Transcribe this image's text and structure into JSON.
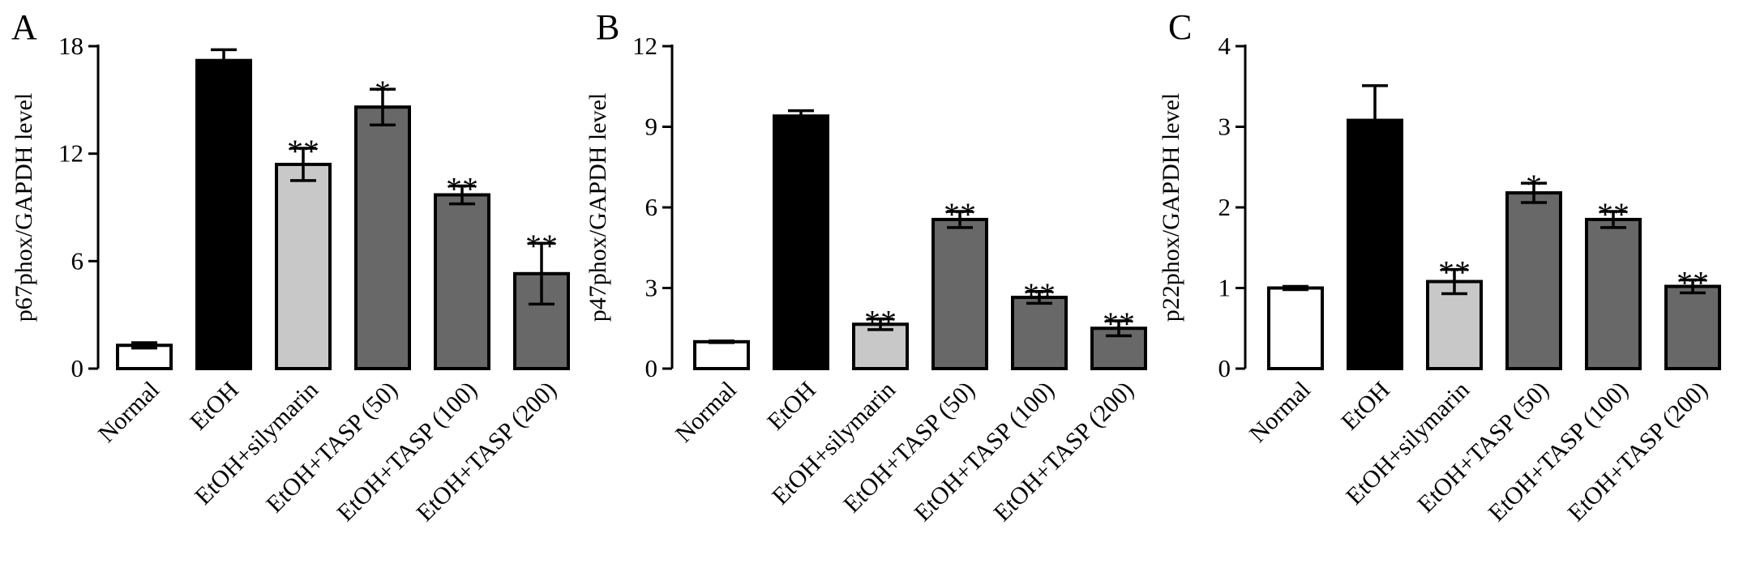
{
  "chart_data": [
    {
      "panel": "A",
      "type": "bar",
      "ylabel": "p67phox/GAPDH level",
      "ylim": [
        0,
        18
      ],
      "yticks": [
        "0",
        "6",
        "12",
        "18"
      ],
      "categories": [
        "Normal",
        "EtOH",
        "EtOH+silymarin",
        "EtOH+TASP (50)",
        "EtOH+TASP (100)",
        "EtOH+TASP (200)"
      ],
      "values": [
        1.3,
        17.2,
        11.4,
        14.6,
        9.7,
        5.3
      ],
      "errors": [
        0.15,
        0.6,
        0.9,
        1.0,
        0.5,
        1.7
      ],
      "significance": [
        "",
        "",
        "**",
        "*",
        "**",
        "**"
      ],
      "bar_colors": [
        "#ffffff",
        "#000000",
        "#c8c8c8",
        "#686868",
        "#686868",
        "#686868"
      ]
    },
    {
      "panel": "B",
      "type": "bar",
      "ylabel": "p47phox/GAPDH level",
      "ylim": [
        0,
        12
      ],
      "yticks": [
        "0",
        "3",
        "6",
        "9",
        "12"
      ],
      "categories": [
        "Normal",
        "EtOH",
        "EtOH+silymarin",
        "EtOH+TASP (50)",
        "EtOH+TASP (100)",
        "EtOH+TASP (200)"
      ],
      "values": [
        1.0,
        9.4,
        1.65,
        5.55,
        2.65,
        1.5
      ],
      "errors": [
        0.03,
        0.2,
        0.2,
        0.3,
        0.22,
        0.28
      ],
      "significance": [
        "",
        "",
        "**",
        "**",
        "**",
        "**"
      ],
      "bar_colors": [
        "#ffffff",
        "#000000",
        "#c8c8c8",
        "#686868",
        "#686868",
        "#686868"
      ]
    },
    {
      "panel": "C",
      "type": "bar",
      "ylabel": "p22phox/GAPDH level",
      "ylim": [
        0,
        4
      ],
      "yticks": [
        "0",
        "1",
        "2",
        "3",
        "4"
      ],
      "categories": [
        "Normal",
        "EtOH",
        "EtOH+silymarin",
        "EtOH+TASP (50)",
        "EtOH+TASP (100)",
        "EtOH+TASP (200)"
      ],
      "values": [
        1.0,
        3.08,
        1.08,
        2.18,
        1.85,
        1.02
      ],
      "errors": [
        0.02,
        0.43,
        0.15,
        0.12,
        0.1,
        0.08
      ],
      "significance": [
        "",
        "",
        "**",
        "*",
        "**",
        "**"
      ],
      "bar_colors": [
        "#ffffff",
        "#000000",
        "#c8c8c8",
        "#686868",
        "#686868",
        "#686868"
      ]
    }
  ]
}
